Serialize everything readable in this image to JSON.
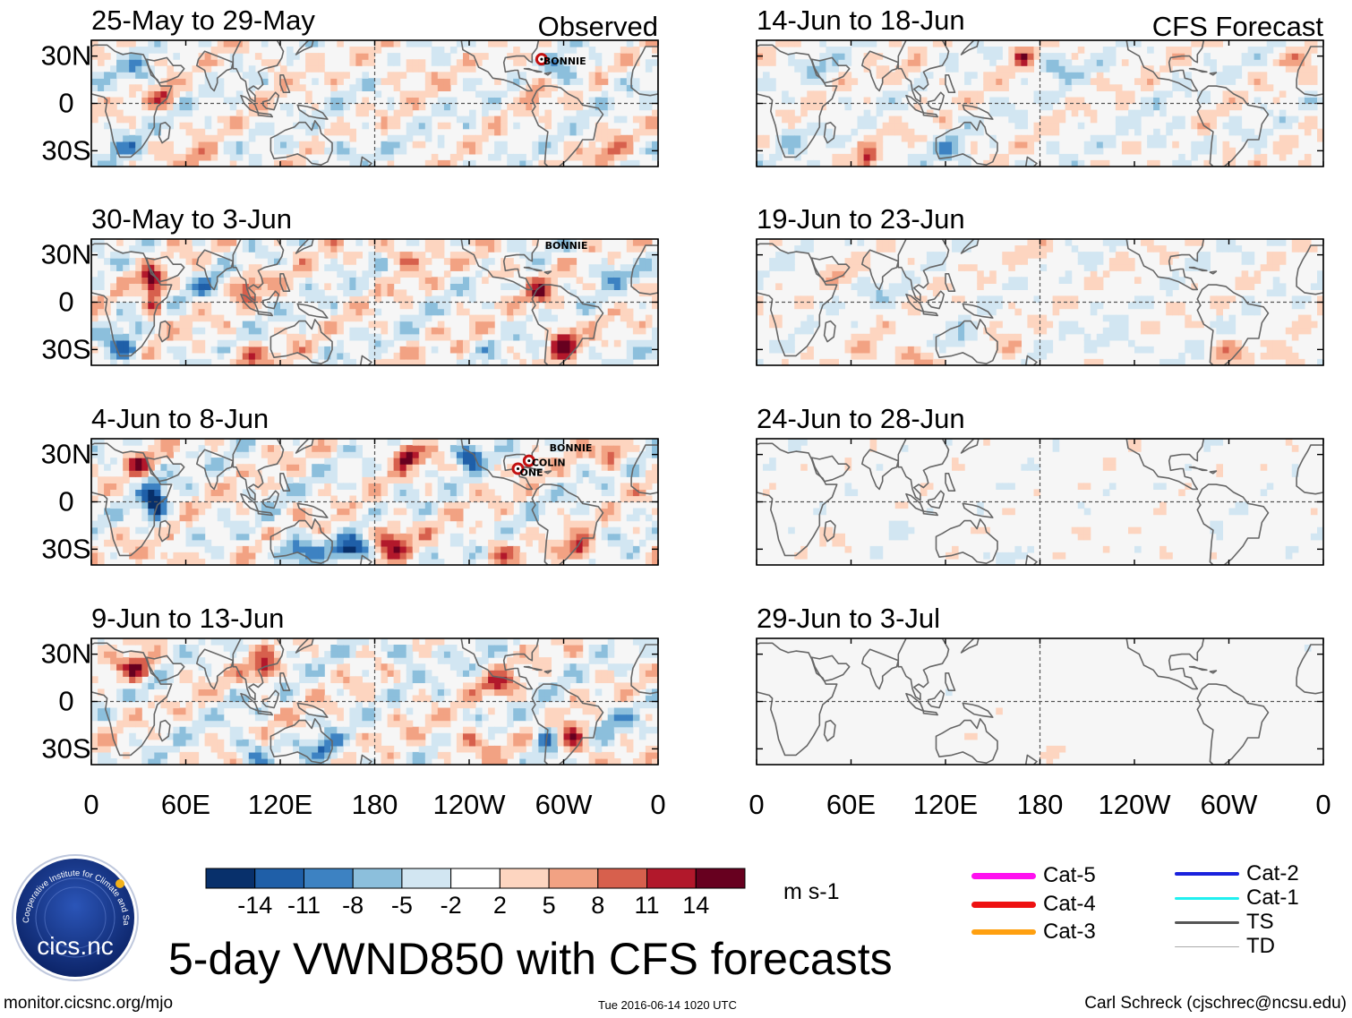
{
  "chart_data": {
    "type": "heatmap",
    "title": "5-day VWND850 with CFS forecasts",
    "variable": "850-hPa meridional wind (VWND850)",
    "units": "m s-1",
    "colorbar": {
      "ticks": [
        "-14",
        "-11",
        "-8",
        "-5",
        "-2",
        "2",
        "5",
        "8",
        "11",
        "14"
      ],
      "colors": [
        "#08306b",
        "#1f5fa8",
        "#3d82c2",
        "#8cbfdc",
        "#d2e6f2",
        "#ffffff",
        "#fdd5c0",
        "#f2a283",
        "#d7604d",
        "#b2182b",
        "#67001f"
      ]
    },
    "x_axis": {
      "ticks": [
        "0",
        "60E",
        "120E",
        "180",
        "120W",
        "60W",
        "0"
      ],
      "range": [
        0,
        360
      ]
    },
    "y_axis": {
      "ticks": [
        "30N",
        "0",
        "30S"
      ],
      "range": [
        -40,
        40
      ]
    },
    "column_labels": [
      "Observed",
      "CFS Forecast"
    ],
    "panels": [
      {
        "period": "25-May to 29-May",
        "source": "Observed",
        "storms": [
          "BONNIE"
        ]
      },
      {
        "period": "30-May to 3-Jun",
        "source": "Observed",
        "storms": [
          "BONNIE"
        ]
      },
      {
        "period": "4-Jun to 8-Jun",
        "source": "Observed",
        "storms": [
          "BONNIE",
          "COLIN",
          "ONE"
        ]
      },
      {
        "period": "9-Jun to 13-Jun",
        "source": "Observed",
        "storms": []
      },
      {
        "period": "14-Jun to 18-Jun",
        "source": "CFS Forecast",
        "storms": []
      },
      {
        "period": "19-Jun to 23-Jun",
        "source": "CFS Forecast",
        "storms": []
      },
      {
        "period": "24-Jun to 28-Jun",
        "source": "CFS Forecast",
        "storms": []
      },
      {
        "period": "29-Jun to 3-Jul",
        "source": "CFS Forecast",
        "storms": []
      }
    ],
    "storm_legend": [
      {
        "label": "Cat-5",
        "color": "#ff10f0"
      },
      {
        "label": "Cat-4",
        "color": "#ee1111"
      },
      {
        "label": "Cat-3",
        "color": "#ffa010"
      },
      {
        "label": "Cat-2",
        "color": "#1a22dd"
      },
      {
        "label": "Cat-1",
        "color": "#20f0f0"
      },
      {
        "label": "TS",
        "color": "#555555"
      },
      {
        "label": "TD",
        "color": "#aaaaaa"
      }
    ]
  },
  "footer": {
    "site": "monitor.cicsnc.org/mjo",
    "timestamp": "Tue 2016-06-14 1020 UTC",
    "author": "Carl Schreck (cjschrec@ncsu.edu)"
  },
  "logo": {
    "text": "cics.nc",
    "ring_text": "Cooperative Institute for Climate and Satellites"
  }
}
